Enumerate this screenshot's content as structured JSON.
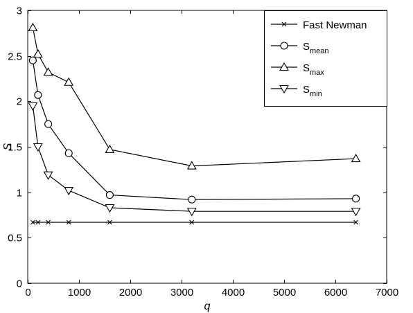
{
  "chart_data": {
    "type": "line",
    "xlabel": "q",
    "ylabel": "S",
    "xlim": [
      0,
      7000
    ],
    "ylim": [
      0,
      3
    ],
    "xticks": [
      0,
      1000,
      2000,
      3000,
      4000,
      5000,
      6000,
      7000
    ],
    "xtick_labels": [
      "0",
      "1000",
      "2000",
      "3000",
      "4000",
      "5000",
      "6000",
      "7000"
    ],
    "yticks": [
      0,
      0.5,
      1,
      1.5,
      2,
      2.5,
      3
    ],
    "ytick_labels": [
      "0",
      "0.5",
      "1",
      "1.5",
      "2",
      "2.5",
      "3"
    ],
    "grid": false,
    "legend_position": "top-right",
    "series": [
      {
        "name": "Fast Newman",
        "name_main": "Fast Newman",
        "name_sub": "",
        "marker": "x",
        "x": [
          100,
          200,
          400,
          800,
          1600,
          3200,
          6400
        ],
        "values": [
          0.67,
          0.67,
          0.67,
          0.67,
          0.67,
          0.67,
          0.67
        ]
      },
      {
        "name": "S_mean",
        "name_main": "S",
        "name_sub": "mean",
        "marker": "circle",
        "x": [
          100,
          200,
          400,
          800,
          1600,
          3200,
          6400
        ],
        "values": [
          2.45,
          2.07,
          1.75,
          1.43,
          0.97,
          0.92,
          0.93
        ]
      },
      {
        "name": "S_max",
        "name_main": "S",
        "name_sub": "max",
        "marker": "triangle-up",
        "x": [
          100,
          200,
          400,
          800,
          1600,
          3200,
          6400
        ],
        "values": [
          2.81,
          2.52,
          2.32,
          2.21,
          1.47,
          1.29,
          1.37
        ]
      },
      {
        "name": "S_min",
        "name_main": "S",
        "name_sub": "min",
        "marker": "triangle-down",
        "x": [
          100,
          200,
          400,
          800,
          1600,
          3200,
          6400
        ],
        "values": [
          1.95,
          1.5,
          1.19,
          1.02,
          0.83,
          0.79,
          0.79
        ]
      }
    ]
  }
}
